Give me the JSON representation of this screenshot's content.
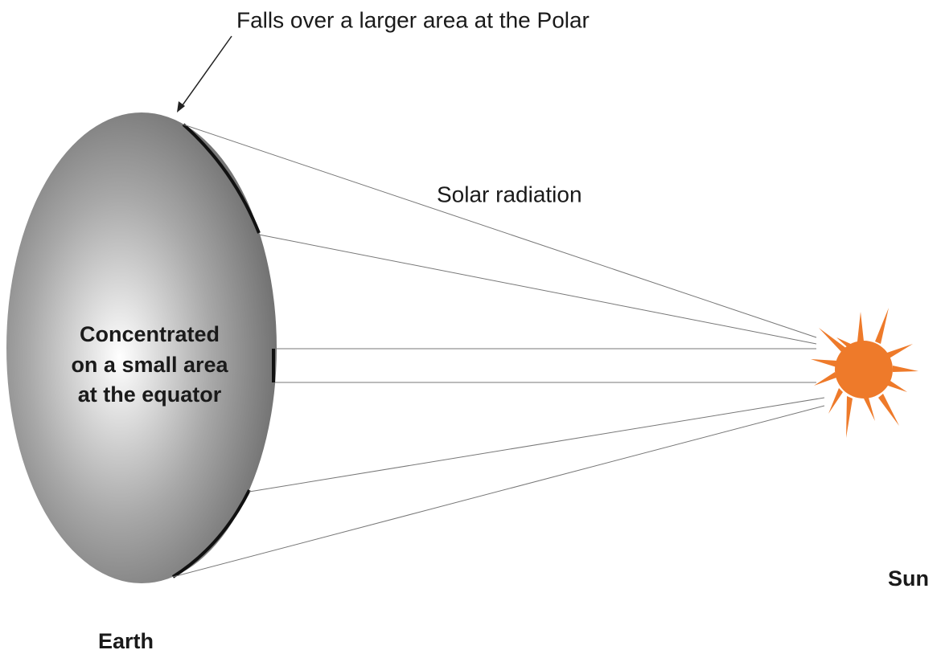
{
  "labels": {
    "polar": "Falls over a larger area at the Polar",
    "radiation": "Solar radiation",
    "equator_line1": "Concentrated",
    "equator_line2": "on a small area",
    "equator_line3": "at the equator",
    "sun": "Sun",
    "earth": "Earth"
  }
}
